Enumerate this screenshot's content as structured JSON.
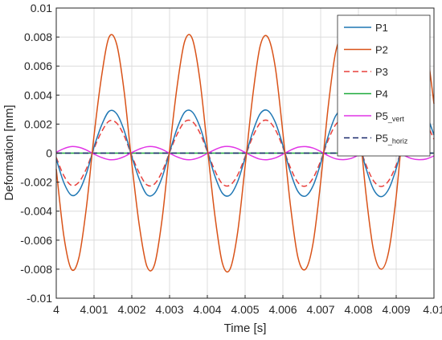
{
  "chart_data": {
    "type": "line",
    "title": "",
    "xlabel": "Time [s]",
    "ylabel": "Deformation [mm]",
    "xlim": [
      4,
      4.01
    ],
    "ylim": [
      -0.01,
      0.01
    ],
    "grid": true,
    "legend_position": "top-right",
    "x_ticks": [
      4,
      4.001,
      4.002,
      4.003,
      4.004,
      4.005,
      4.006,
      4.007,
      4.008,
      4.009,
      4.01
    ],
    "x_tick_labels": [
      "4",
      "4.001",
      "4.002",
      "4.003",
      "4.004",
      "4.005",
      "4.006",
      "4.007",
      "4.008",
      "4.009",
      "4.01"
    ],
    "y_ticks": [
      -0.01,
      -0.008,
      -0.006,
      -0.004,
      -0.002,
      0,
      0.002,
      0.004,
      0.006,
      0.008,
      0.01
    ],
    "y_tick_labels": [
      "-0.01",
      "-0.008",
      "-0.006",
      "-0.004",
      "-0.002",
      "0",
      "0.002",
      "0.004",
      "0.006",
      "0.008",
      "0.01"
    ],
    "x": [
      4.0,
      4.0002,
      4.0004,
      4.0006,
      4.0008,
      4.001,
      4.0012,
      4.0014,
      4.0016,
      4.0018,
      4.002,
      4.0022,
      4.0024,
      4.0026,
      4.0028,
      4.003,
      4.0032,
      4.0034,
      4.0036,
      4.0038,
      4.004,
      4.0042,
      4.0044,
      4.0046,
      4.0048,
      4.005,
      4.0052,
      4.0054,
      4.0056,
      4.0058,
      4.006,
      4.0062,
      4.0064,
      4.0066,
      4.0068,
      4.007,
      4.0072,
      4.0074,
      4.0076,
      4.0078,
      4.008,
      4.0082,
      4.0084,
      4.0086,
      4.0088,
      4.009,
      4.0092,
      4.0094,
      4.0096,
      4.0098,
      4.01
    ],
    "series": [
      {
        "name": "P1",
        "color": "#1f77b4",
        "dash": "solid",
        "values": [
          -0.0004,
          -0.00203,
          -0.0029,
          -0.00262,
          -0.00139,
          0.00042,
          0.00192,
          0.00289,
          0.00271,
          0.00154,
          -0.00024,
          -0.00181,
          -0.00286,
          -0.00278,
          -0.00169,
          5e-05,
          0.0017,
          0.00282,
          0.00284,
          0.00184,
          0.00014,
          -0.00158,
          -0.00277,
          -0.00289,
          -0.00198,
          -0.00033,
          0.00145,
          0.00272,
          0.00293,
          0.00212,
          0.00052,
          -0.00132,
          -0.00265,
          -0.00296,
          -0.00225,
          -0.00071,
          0.00118,
          0.00258,
          0.00298,
          0.00237,
          0.00089,
          -0.00104,
          -0.0025,
          -0.003,
          -0.00249,
          -0.00107,
          0.00089,
          0.00241,
          0.003,
          0.0026,
          0.00125
        ]
      },
      {
        "name": "P2",
        "color": "#d95319",
        "dash": "solid",
        "values": [
          -0.0011,
          -0.0057,
          -0.008,
          -0.0072,
          -0.0037,
          0.0012,
          0.0053,
          0.008,
          0.0075,
          0.0042,
          -0.0007,
          -0.005,
          -0.0078,
          -0.0077,
          -0.0046,
          0.0002,
          0.0046,
          0.0077,
          0.0079,
          0.0051,
          0.0004,
          -0.0043,
          -0.0076,
          -0.008,
          -0.0055,
          -0.0009,
          0.0039,
          0.0074,
          0.008,
          0.0059,
          0.0014,
          -0.0036,
          -0.0072,
          -0.008,
          -0.0062,
          -0.002,
          0.0032,
          0.007,
          0.008,
          0.0065,
          0.0025,
          -0.0028,
          -0.0067,
          -0.008,
          -0.0068,
          -0.003,
          0.0024,
          0.0065,
          0.008,
          0.0072,
          0.0034
        ]
      },
      {
        "name": "P3",
        "color": "#e8403c",
        "dash": "dashed",
        "values": [
          -0.0003,
          -0.00155,
          -0.00222,
          -0.002,
          -0.00106,
          0.00032,
          0.00147,
          0.00221,
          0.00207,
          0.00118,
          -0.00018,
          -0.00138,
          -0.00219,
          -0.00213,
          -0.00129,
          4e-05,
          0.0013,
          0.00216,
          0.00218,
          0.00141,
          0.00011,
          -0.00121,
          -0.00212,
          -0.00221,
          -0.00152,
          -0.00025,
          0.00111,
          0.00208,
          0.00224,
          0.00162,
          0.0004,
          -0.00101,
          -0.00203,
          -0.00227,
          -0.00172,
          -0.00054,
          0.0009,
          0.00197,
          0.00228,
          0.00181,
          0.00068,
          -0.0008,
          -0.00191,
          -0.0023,
          -0.00191,
          -0.00082,
          0.00068,
          0.00184,
          0.0023,
          0.00199,
          0.00096
        ]
      },
      {
        "name": "P4",
        "color": "#1faa3c",
        "dash": "solid",
        "values": [
          0,
          0,
          0,
          0,
          0,
          0,
          0,
          0,
          0,
          0,
          0,
          0,
          0,
          0,
          0,
          0,
          0,
          0,
          0,
          0,
          0,
          0,
          0,
          0,
          0,
          0,
          0,
          0,
          0,
          0,
          0,
          0,
          0,
          0,
          0,
          0,
          0,
          0,
          0,
          0,
          0,
          0,
          0,
          0,
          0,
          0,
          0,
          0,
          0,
          0,
          0
        ]
      },
      {
        "name": "P5_vert",
        "color": "#e135e6",
        "dash": "solid",
        "values": [
          6e-05,
          0.00031,
          0.00045,
          0.0004,
          0.00021,
          -7e-05,
          -0.0003,
          -0.00045,
          -0.00042,
          -0.00024,
          4e-05,
          0.00028,
          0.00044,
          0.00043,
          0.00026,
          -1e-05,
          -0.00026,
          -0.00043,
          -0.00044,
          -0.00029,
          -2e-05,
          0.00024,
          0.00043,
          0.00045,
          0.00031,
          5e-05,
          -0.00022,
          -0.00042,
          -0.00045,
          -0.00033,
          -8e-05,
          0.0002,
          0.00041,
          0.00045,
          0.00035,
          0.00011,
          -0.00018,
          -0.00039,
          -0.00045,
          -0.00037,
          -0.00014,
          0.00016,
          0.00038,
          0.00045,
          0.00038,
          0.00017,
          -0.00014,
          -0.00037,
          -0.00045,
          -0.0004,
          -0.00019
        ]
      },
      {
        "name": "P5_horiz",
        "color": "#1a2a6c",
        "dash": "dashed",
        "values": [
          0,
          0,
          0,
          0,
          0,
          0,
          0,
          0,
          0,
          0,
          0,
          0,
          0,
          0,
          0,
          0,
          0,
          0,
          0,
          0,
          0,
          0,
          0,
          0,
          0,
          0,
          0,
          0,
          0,
          0,
          0,
          0,
          0,
          0,
          0,
          0,
          0,
          0,
          0,
          0,
          0,
          0,
          0,
          0,
          0,
          0,
          0,
          0,
          0,
          0,
          0
        ]
      }
    ],
    "legend": [
      {
        "main": "P1",
        "sub": ""
      },
      {
        "main": "P2",
        "sub": ""
      },
      {
        "main": "P3",
        "sub": ""
      },
      {
        "main": "P4",
        "sub": ""
      },
      {
        "main": "P5",
        "sub": "_vert"
      },
      {
        "main": "P5",
        "sub": "_horiz"
      }
    ]
  }
}
